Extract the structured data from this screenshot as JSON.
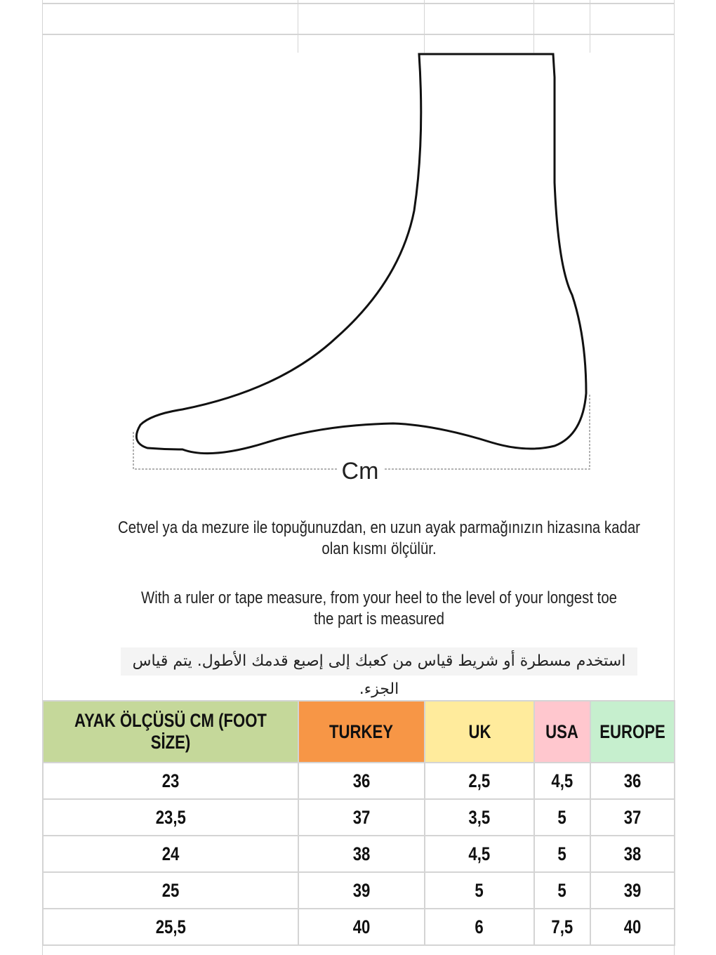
{
  "measure_label": "Cm",
  "instructions": {
    "tr_line1": "Cetvel ya da mezure ile topuğunuzdan, en uzun ayak parmağınızın hizasına kadar",
    "tr_line2": "olan kısmı ölçülür.",
    "en_line1": "With a ruler or tape measure, from your heel to the level of your longest toe",
    "en_line2": "the part is measured",
    "ar": "استخدم مسطرة أو شريط قياس من كعبك إلى إصبع قدمك الأطول.  يتم قياس الجزء."
  },
  "table": {
    "headers": [
      {
        "label": "AYAK ÖLÇÜSÜ CM (FOOT SİZE)",
        "color": "#c5d89a"
      },
      {
        "label": "TURKEY",
        "color": "#f79646"
      },
      {
        "label": "UK",
        "color": "#ffeb9c"
      },
      {
        "label": "USA",
        "color": "#ffc7ce"
      },
      {
        "label": "EUROPE",
        "color": "#c6efce"
      }
    ],
    "rows": [
      [
        "23",
        "36",
        "2,5",
        "4,5",
        "36"
      ],
      [
        "23,5",
        "37",
        "3,5",
        "5",
        "37"
      ],
      [
        "24",
        "38",
        "4,5",
        "5",
        "38"
      ],
      [
        "25",
        "39",
        "5",
        "5",
        "39"
      ],
      [
        "25,5",
        "40",
        "6",
        "7,5",
        "40"
      ]
    ]
  }
}
